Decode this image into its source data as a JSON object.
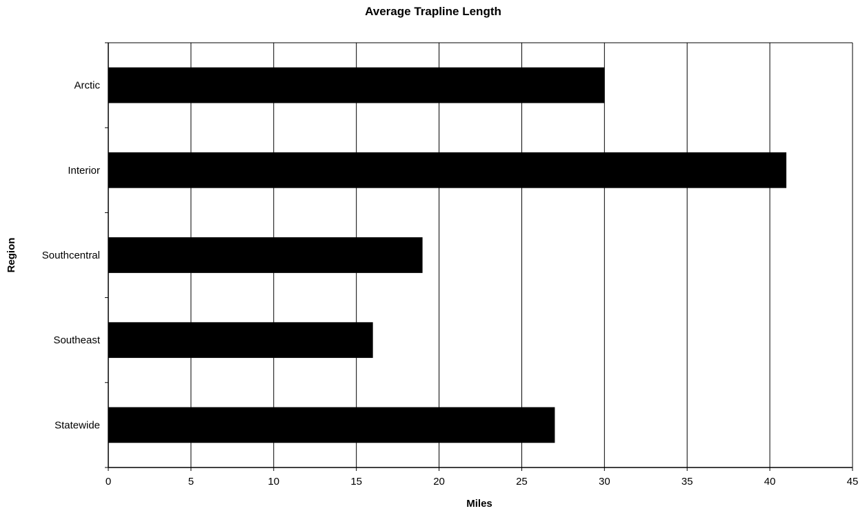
{
  "chart_data": {
    "type": "bar",
    "orientation": "horizontal",
    "title": "Average Trapline Length",
    "xlabel": "Miles",
    "ylabel": "Region",
    "categories": [
      "Arctic",
      "Interior",
      "Southcentral",
      "Southeast",
      "Statewide"
    ],
    "values": [
      30,
      41,
      19,
      16,
      27
    ],
    "xlim": [
      0,
      45
    ],
    "x_ticks": [
      0,
      5,
      10,
      15,
      20,
      25,
      30,
      35,
      40,
      45
    ],
    "grid": "vertical",
    "legend": "none",
    "bar_color": "#000000"
  }
}
